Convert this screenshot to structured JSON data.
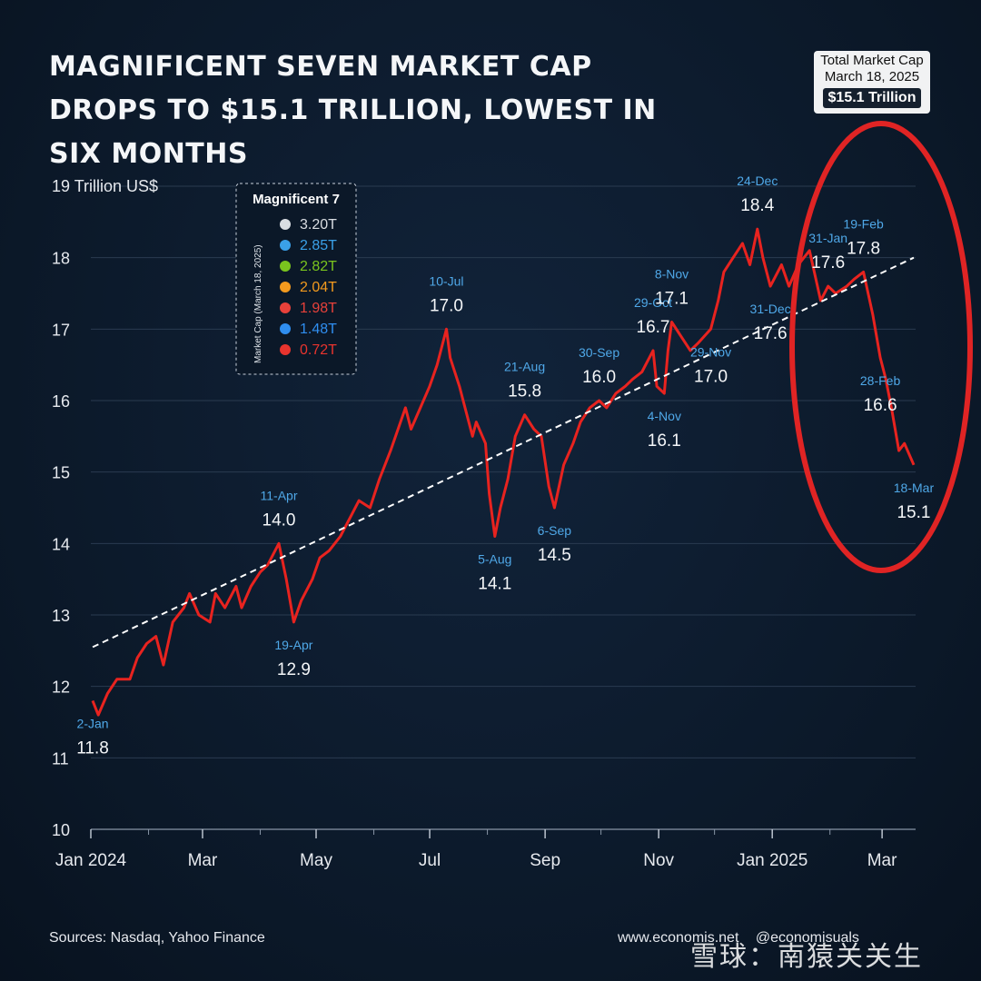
{
  "title": "Magnificent Seven Market Cap Drops to $15.1 Trillion, Lowest in Six Months",
  "total_box": {
    "line1": "Total Market Cap",
    "line2": "March 18, 2025",
    "value": "$15.1 Trillion"
  },
  "legend": {
    "title": "Magnificent 7",
    "side_label": "Market Cap (March 18, 2025)",
    "items": [
      {
        "company_icon": "apple-logo-icon",
        "value": "3.20T",
        "color": "#d9dde2"
      },
      {
        "company_icon": "microsoft-logo-icon",
        "value": "2.85T",
        "color": "#3aa0e8"
      },
      {
        "company_icon": "nvidia-logo-icon",
        "value": "2.82T",
        "color": "#7ac41e"
      },
      {
        "company_icon": "amazon-logo-icon",
        "value": "2.04T",
        "color": "#f39a1e"
      },
      {
        "company_icon": "google-logo-icon",
        "value": "1.98T",
        "color": "#e8413a"
      },
      {
        "company_icon": "meta-logo-icon",
        "value": "1.48T",
        "color": "#2f8ef0"
      },
      {
        "company_icon": "tesla-logo-icon",
        "value": "0.72T",
        "color": "#e8342e"
      }
    ]
  },
  "chart_data": {
    "type": "line",
    "ylabel": "19 Trillion US$",
    "ylim": [
      10,
      19
    ],
    "y_ticks": [
      "10",
      "11",
      "12",
      "13",
      "14",
      "15",
      "16",
      "17",
      "18"
    ],
    "x_ticks": [
      "Jan 2024",
      "Mar",
      "May",
      "Jul",
      "Sep",
      "Nov",
      "Jan 2025",
      "Mar"
    ],
    "x_tick_dates": [
      "2024-01-01",
      "2024-03-01",
      "2024-05-01",
      "2024-07-01",
      "2024-09-01",
      "2024-11-01",
      "2025-01-01",
      "2025-03-01"
    ],
    "x_range": [
      "2024-01-01",
      "2025-03-19"
    ],
    "series_color": "#e8231f",
    "trend_line": {
      "start": [
        "2024-01-02",
        12.55
      ],
      "end": [
        "2025-03-18",
        18.0
      ],
      "style": "dashed",
      "color": "#ffffff"
    },
    "series": [
      {
        "points": [
          [
            "2024-01-02",
            11.8
          ],
          [
            "2024-01-05",
            11.6
          ],
          [
            "2024-01-10",
            11.9
          ],
          [
            "2024-01-15",
            12.1
          ],
          [
            "2024-01-22",
            12.1
          ],
          [
            "2024-01-26",
            12.4
          ],
          [
            "2024-01-31",
            12.6
          ],
          [
            "2024-02-05",
            12.7
          ],
          [
            "2024-02-09",
            12.3
          ],
          [
            "2024-02-14",
            12.9
          ],
          [
            "2024-02-20",
            13.1
          ],
          [
            "2024-02-23",
            13.3
          ],
          [
            "2024-02-28",
            13.0
          ],
          [
            "2024-03-05",
            12.9
          ],
          [
            "2024-03-08",
            13.3
          ],
          [
            "2024-03-13",
            13.1
          ],
          [
            "2024-03-19",
            13.4
          ],
          [
            "2024-03-22",
            13.1
          ],
          [
            "2024-03-27",
            13.4
          ],
          [
            "2024-04-01",
            13.6
          ],
          [
            "2024-04-05",
            13.7
          ],
          [
            "2024-04-11",
            14.0
          ],
          [
            "2024-04-15",
            13.5
          ],
          [
            "2024-04-19",
            12.9
          ],
          [
            "2024-04-23",
            13.2
          ],
          [
            "2024-04-29",
            13.5
          ],
          [
            "2024-05-03",
            13.8
          ],
          [
            "2024-05-08",
            13.9
          ],
          [
            "2024-05-14",
            14.1
          ],
          [
            "2024-05-20",
            14.4
          ],
          [
            "2024-05-24",
            14.6
          ],
          [
            "2024-05-30",
            14.5
          ],
          [
            "2024-06-04",
            14.9
          ],
          [
            "2024-06-10",
            15.3
          ],
          [
            "2024-06-14",
            15.6
          ],
          [
            "2024-06-18",
            15.9
          ],
          [
            "2024-06-21",
            15.6
          ],
          [
            "2024-06-26",
            15.9
          ],
          [
            "2024-07-01",
            16.2
          ],
          [
            "2024-07-05",
            16.5
          ],
          [
            "2024-07-10",
            17.0
          ],
          [
            "2024-07-12",
            16.6
          ],
          [
            "2024-07-17",
            16.2
          ],
          [
            "2024-07-19",
            16.0
          ],
          [
            "2024-07-24",
            15.5
          ],
          [
            "2024-07-26",
            15.7
          ],
          [
            "2024-07-31",
            15.4
          ],
          [
            "2024-08-02",
            14.7
          ],
          [
            "2024-08-05",
            14.1
          ],
          [
            "2024-08-08",
            14.5
          ],
          [
            "2024-08-12",
            14.9
          ],
          [
            "2024-08-16",
            15.5
          ],
          [
            "2024-08-21",
            15.8
          ],
          [
            "2024-08-26",
            15.6
          ],
          [
            "2024-08-30",
            15.5
          ],
          [
            "2024-09-03",
            14.8
          ],
          [
            "2024-09-06",
            14.5
          ],
          [
            "2024-09-11",
            15.1
          ],
          [
            "2024-09-16",
            15.4
          ],
          [
            "2024-09-20",
            15.7
          ],
          [
            "2024-09-25",
            15.9
          ],
          [
            "2024-09-30",
            16.0
          ],
          [
            "2024-10-04",
            15.9
          ],
          [
            "2024-10-09",
            16.1
          ],
          [
            "2024-10-14",
            16.2
          ],
          [
            "2024-10-18",
            16.3
          ],
          [
            "2024-10-23",
            16.4
          ],
          [
            "2024-10-29",
            16.7
          ],
          [
            "2024-10-31",
            16.2
          ],
          [
            "2024-11-04",
            16.1
          ],
          [
            "2024-11-06",
            16.7
          ],
          [
            "2024-11-08",
            17.1
          ],
          [
            "2024-11-13",
            16.9
          ],
          [
            "2024-11-18",
            16.7
          ],
          [
            "2024-11-22",
            16.8
          ],
          [
            "2024-11-29",
            17.0
          ],
          [
            "2024-12-03",
            17.4
          ],
          [
            "2024-12-06",
            17.8
          ],
          [
            "2024-12-11",
            18.0
          ],
          [
            "2024-12-16",
            18.2
          ],
          [
            "2024-12-20",
            17.9
          ],
          [
            "2024-12-24",
            18.4
          ],
          [
            "2024-12-27",
            18.0
          ],
          [
            "2024-12-31",
            17.6
          ],
          [
            "2025-01-06",
            17.9
          ],
          [
            "2025-01-10",
            17.6
          ],
          [
            "2025-01-15",
            17.9
          ],
          [
            "2025-01-21",
            18.1
          ],
          [
            "2025-01-27",
            17.4
          ],
          [
            "2025-01-31",
            17.6
          ],
          [
            "2025-02-04",
            17.5
          ],
          [
            "2025-02-10",
            17.6
          ],
          [
            "2025-02-14",
            17.7
          ],
          [
            "2025-02-19",
            17.8
          ],
          [
            "2025-02-24",
            17.2
          ],
          [
            "2025-02-28",
            16.6
          ],
          [
            "2025-03-03",
            16.3
          ],
          [
            "2025-03-06",
            15.9
          ],
          [
            "2025-03-10",
            15.3
          ],
          [
            "2025-03-13",
            15.4
          ],
          [
            "2025-03-18",
            15.1
          ]
        ]
      }
    ],
    "annotations": [
      {
        "date": "2024-01-02",
        "label": "2-Jan",
        "value": "11.8",
        "y": 11.8,
        "pos": "below"
      },
      {
        "date": "2024-04-11",
        "label": "11-Apr",
        "value": "14.0",
        "y": 14.0,
        "pos": "above"
      },
      {
        "date": "2024-04-19",
        "label": "19-Apr",
        "value": "12.9",
        "y": 12.9,
        "pos": "below"
      },
      {
        "date": "2024-07-10",
        "label": "10-Jul",
        "value": "17.0",
        "y": 17.0,
        "pos": "above"
      },
      {
        "date": "2024-08-05",
        "label": "5-Aug",
        "value": "14.1",
        "y": 14.1,
        "pos": "below"
      },
      {
        "date": "2024-08-21",
        "label": "21-Aug",
        "value": "15.8",
        "y": 15.8,
        "pos": "above"
      },
      {
        "date": "2024-09-06",
        "label": "6-Sep",
        "value": "14.5",
        "y": 14.5,
        "pos": "below"
      },
      {
        "date": "2024-09-30",
        "label": "30-Sep",
        "value": "16.0",
        "y": 16.0,
        "pos": "above"
      },
      {
        "date": "2024-10-29",
        "label": "29-Oct",
        "value": "16.7",
        "y": 16.7,
        "pos": "above"
      },
      {
        "date": "2024-11-04",
        "label": "4-Nov",
        "value": "16.1",
        "y": 16.1,
        "pos": "below"
      },
      {
        "date": "2024-11-08",
        "label": "8-Nov",
        "value": "17.1",
        "y": 17.1,
        "pos": "above"
      },
      {
        "date": "2024-11-29",
        "label": "29-Nov",
        "value": "17.0",
        "y": 17.0,
        "pos": "below"
      },
      {
        "date": "2024-12-24",
        "label": "24-Dec",
        "value": "18.4",
        "y": 18.4,
        "pos": "above"
      },
      {
        "date": "2024-12-31",
        "label": "31-Dec",
        "value": "17.6",
        "y": 17.6,
        "pos": "below"
      },
      {
        "date": "2025-01-31",
        "label": "31-Jan",
        "value": "17.6",
        "y": 17.6,
        "pos": "above"
      },
      {
        "date": "2025-02-19",
        "label": "19-Feb",
        "value": "17.8",
        "y": 17.8,
        "pos": "above"
      },
      {
        "date": "2025-02-28",
        "label": "28-Feb",
        "value": "16.6",
        "y": 16.6,
        "pos": "below"
      },
      {
        "date": "2025-03-18",
        "label": "18-Mar",
        "value": "15.1",
        "y": 15.1,
        "pos": "below"
      }
    ],
    "highlight": {
      "shape": "ellipse",
      "color": "#e02424",
      "around": "2025 decline"
    },
    "grid": "horizontal"
  },
  "footer": {
    "sources": "Sources: Nasdaq, Yahoo Finance",
    "website": "www.economis.net",
    "handle": "@economisuals",
    "watermark": "雪球：南猿关关生"
  }
}
